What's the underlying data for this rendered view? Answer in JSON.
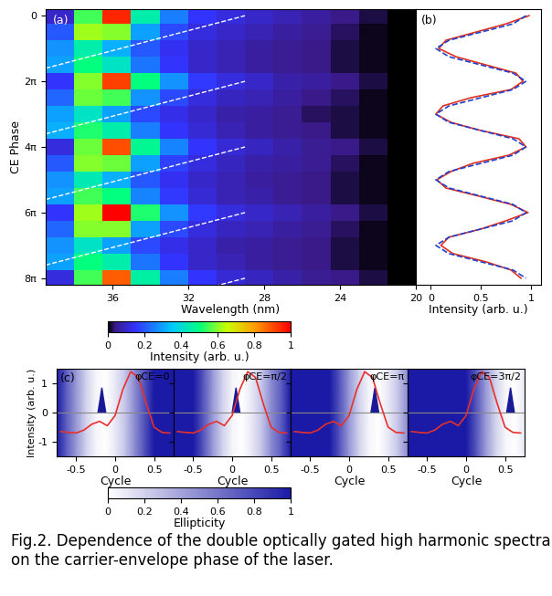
{
  "chart_data": [
    {
      "type": "heatmap",
      "panel_label": "(a)",
      "x_label": "Wavelength (nm)",
      "y_label": "CE Phase",
      "x_edges": [
        39.5,
        38,
        36.5,
        35,
        33.5,
        32,
        30.5,
        29,
        27.5,
        26,
        24.5,
        23,
        21.5,
        20
      ],
      "y_edges": [
        -0.25,
        0.25,
        0.75,
        1.25,
        1.75,
        2.25,
        2.75,
        3.25,
        3.75,
        4.25,
        4.75,
        5.25,
        5.75,
        6.25,
        6.75,
        7.25,
        7.75,
        8.25
      ],
      "cells": [
        [
          0.1,
          0.55,
          0.95,
          0.45,
          0.25,
          0.15,
          0.12,
          0.1,
          0.08,
          0.06,
          0.04,
          0.02,
          0.0
        ],
        [
          0.2,
          0.62,
          0.6,
          0.3,
          0.18,
          0.12,
          0.1,
          0.08,
          0.06,
          0.05,
          0.03,
          0.01,
          0.0
        ],
        [
          0.28,
          0.45,
          0.32,
          0.2,
          0.14,
          0.1,
          0.08,
          0.06,
          0.05,
          0.04,
          0.02,
          0.01,
          0.0
        ],
        [
          0.3,
          0.5,
          0.42,
          0.24,
          0.15,
          0.1,
          0.08,
          0.06,
          0.05,
          0.04,
          0.02,
          0.01,
          0.0
        ],
        [
          0.15,
          0.6,
          0.92,
          0.5,
          0.28,
          0.16,
          0.12,
          0.1,
          0.07,
          0.06,
          0.04,
          0.02,
          0.0
        ],
        [
          0.22,
          0.58,
          0.55,
          0.28,
          0.18,
          0.12,
          0.09,
          0.08,
          0.06,
          0.04,
          0.03,
          0.01,
          0.0
        ],
        [
          0.3,
          0.42,
          0.3,
          0.18,
          0.13,
          0.1,
          0.07,
          0.06,
          0.05,
          0.03,
          0.02,
          0.01,
          0.0
        ],
        [
          0.32,
          0.52,
          0.45,
          0.25,
          0.15,
          0.11,
          0.08,
          0.06,
          0.05,
          0.04,
          0.02,
          0.01,
          0.0
        ],
        [
          0.12,
          0.58,
          0.9,
          0.48,
          0.26,
          0.15,
          0.11,
          0.09,
          0.07,
          0.05,
          0.04,
          0.02,
          0.0
        ],
        [
          0.2,
          0.6,
          0.58,
          0.3,
          0.17,
          0.12,
          0.09,
          0.07,
          0.06,
          0.05,
          0.03,
          0.01,
          0.0
        ],
        [
          0.28,
          0.44,
          0.32,
          0.2,
          0.14,
          0.1,
          0.08,
          0.06,
          0.05,
          0.04,
          0.02,
          0.01,
          0.0
        ],
        [
          0.3,
          0.55,
          0.5,
          0.26,
          0.16,
          0.11,
          0.08,
          0.07,
          0.05,
          0.04,
          0.02,
          0.01,
          0.0
        ],
        [
          0.15,
          0.62,
          1.0,
          0.52,
          0.28,
          0.16,
          0.12,
          0.1,
          0.08,
          0.06,
          0.04,
          0.02,
          0.0
        ],
        [
          0.22,
          0.6,
          0.6,
          0.3,
          0.18,
          0.12,
          0.09,
          0.08,
          0.06,
          0.05,
          0.03,
          0.01,
          0.0
        ],
        [
          0.28,
          0.42,
          0.3,
          0.18,
          0.13,
          0.1,
          0.07,
          0.06,
          0.05,
          0.04,
          0.02,
          0.01,
          0.0
        ],
        [
          0.3,
          0.5,
          0.45,
          0.24,
          0.15,
          0.1,
          0.08,
          0.06,
          0.05,
          0.04,
          0.02,
          0.01,
          0.0
        ],
        [
          0.12,
          0.55,
          0.88,
          0.46,
          0.25,
          0.15,
          0.11,
          0.09,
          0.07,
          0.05,
          0.04,
          0.02,
          0.0
        ]
      ],
      "guide_lines": [
        {
          "x": [
            39.5,
            29
          ],
          "y": [
            1.6,
            0
          ],
          "color": "white",
          "line_style": "dashed"
        },
        {
          "x": [
            39.5,
            29
          ],
          "y": [
            3.6,
            2
          ],
          "color": "white",
          "line_style": "dashed"
        },
        {
          "x": [
            39.5,
            29
          ],
          "y": [
            5.6,
            4
          ],
          "color": "white",
          "line_style": "dashed"
        },
        {
          "x": [
            39.5,
            29
          ],
          "y": [
            7.6,
            6
          ],
          "color": "white",
          "line_style": "dashed"
        },
        {
          "x": [
            39.5,
            29
          ],
          "y": [
            9.6,
            8
          ],
          "color": "white",
          "line_style": "dashed"
        }
      ],
      "xlim": [
        39.5,
        20
      ],
      "xticks": [
        36,
        32,
        28,
        24,
        20
      ],
      "ylim": [
        8.2,
        -0.2
      ],
      "yticks": [
        0,
        {
          "value": 2,
          "label": "2π"
        },
        {
          "value": 4,
          "label": "4π"
        },
        {
          "value": 6,
          "label": "6π"
        },
        {
          "value": 8,
          "label": "8π"
        }
      ],
      "colorbar": {
        "label": "Intensity (arb. u.)",
        "range": [
          0,
          1
        ],
        "ticks": [
          0,
          0.2,
          0.4,
          0.6,
          0.8,
          1
        ]
      }
    },
    {
      "type": "line",
      "panel_label": "(b)",
      "x_label": "Intensity (arb. u.)",
      "tick_labels": "x",
      "phase": [
        0,
        0.25,
        0.5,
        0.75,
        1,
        1.25,
        1.5,
        1.75,
        2,
        2.25,
        2.5,
        2.75,
        3,
        3.25,
        3.5,
        3.75,
        4,
        4.25,
        4.5,
        4.75,
        5,
        5.25,
        5.5,
        5.75,
        6,
        6.25,
        6.5,
        6.75,
        7,
        7.25,
        7.5,
        7.75,
        8
      ],
      "series": [
        {
          "color": "#e03020",
          "line_style": "solid",
          "values": [
            0.98,
            0.75,
            0.45,
            0.15,
            0.08,
            0.25,
            0.55,
            0.85,
            0.92,
            0.8,
            0.4,
            0.12,
            0.05,
            0.2,
            0.5,
            0.88,
            0.95,
            0.78,
            0.42,
            0.2,
            0.06,
            0.15,
            0.48,
            0.8,
            0.97,
            0.75,
            0.5,
            0.18,
            0.1,
            0.22,
            0.55,
            0.8,
            0.9
          ]
        },
        {
          "color": "#2040d0",
          "line_style": "dashed",
          "values": [
            0.95,
            0.82,
            0.5,
            0.18,
            0.05,
            0.18,
            0.5,
            0.82,
            0.95,
            0.82,
            0.5,
            0.18,
            0.05,
            0.18,
            0.5,
            0.82,
            0.95,
            0.82,
            0.5,
            0.18,
            0.05,
            0.18,
            0.5,
            0.82,
            0.95,
            0.82,
            0.5,
            0.18,
            0.05,
            0.18,
            0.5,
            0.82,
            0.95
          ]
        }
      ],
      "xlim": [
        -0.15,
        1.1
      ],
      "xticks": [
        0,
        0.5,
        1
      ],
      "ylim": [
        8.2,
        -0.2
      ],
      "yticks": [
        0,
        {
          "value": 2,
          "label": "2π"
        },
        {
          "value": 4,
          "label": "4π"
        },
        {
          "value": 6,
          "label": "6π"
        },
        {
          "value": 8,
          "label": "8π"
        }
      ]
    },
    {
      "type": "line",
      "panel_label": "(c)",
      "annotation": "φCE=0",
      "x_label": "Cycle",
      "y_label": "Intensity (arb. u.)",
      "color": "#e8302a",
      "x": [
        -0.7,
        -0.6,
        -0.5,
        -0.4,
        -0.3,
        -0.2,
        -0.1,
        0,
        0.1,
        0.2,
        0.3,
        0.4,
        0.5,
        0.6,
        0.7
      ],
      "values": [
        -0.65,
        -0.68,
        -0.7,
        -0.6,
        -0.4,
        -0.3,
        -0.45,
        -0.1,
        0.8,
        1.4,
        1.2,
        0.3,
        -0.5,
        -0.68,
        -0.7
      ],
      "zero_line": 0,
      "burst": {
        "color": "#1a1a99",
        "x": [
          -0.22,
          -0.19,
          -0.17,
          -0.15,
          -0.12
        ],
        "values": [
          0,
          0.5,
          0.85,
          0.5,
          0
        ]
      },
      "background": {
        "x": [
          -0.75,
          -0.625,
          -0.5,
          -0.375,
          -0.25,
          -0.125,
          0,
          0.125,
          0.25,
          0.375,
          0.5,
          0.625,
          0.75
        ],
        "ellipticity": [
          1,
          0.7,
          0.45,
          0.2,
          0.05,
          0,
          0.1,
          0.25,
          0.5,
          0.75,
          1,
          1,
          1
        ]
      },
      "xlim": [
        -0.75,
        0.75
      ],
      "xticks": [
        -0.5,
        0,
        0.5
      ],
      "ylim": [
        -1.5,
        1.5
      ],
      "yticks": [
        -1,
        0,
        1
      ]
    },
    {
      "type": "line",
      "annotation": "φCE=π/2",
      "tick_labels": "x",
      "x_label": "Cycle",
      "color": "#e8302a",
      "x": [
        -0.7,
        -0.6,
        -0.5,
        -0.4,
        -0.3,
        -0.2,
        -0.1,
        0,
        0.1,
        0.2,
        0.3,
        0.4,
        0.5,
        0.6,
        0.7
      ],
      "values": [
        -0.65,
        -0.68,
        -0.7,
        -0.6,
        -0.4,
        -0.3,
        -0.45,
        -0.1,
        0.8,
        1.4,
        1.2,
        0.3,
        -0.5,
        -0.68,
        -0.7
      ],
      "zero_line": 0,
      "burst": {
        "color": "#1a1a99",
        "x": [
          0,
          0.03,
          0.05,
          0.07,
          0.1
        ],
        "values": [
          0,
          0.5,
          0.85,
          0.5,
          0
        ]
      },
      "background": {
        "x": [
          -0.75,
          -0.625,
          -0.5,
          -0.375,
          -0.25,
          -0.125,
          0,
          0.125,
          0.25,
          0.375,
          0.5,
          0.625,
          0.75
        ],
        "ellipticity": [
          1,
          1,
          1,
          0.75,
          0.45,
          0.2,
          0.05,
          0,
          0.1,
          0.25,
          0.5,
          0.7,
          1
        ]
      },
      "xlim": [
        -0.75,
        0.75
      ],
      "xticks": [
        -0.5,
        0,
        0.5
      ],
      "ylim": [
        -1.5,
        1.5
      ],
      "yticks": [
        -1,
        0,
        1
      ]
    },
    {
      "type": "line",
      "annotation": "φCE=π",
      "tick_labels": "x",
      "x_label": "Cycle",
      "color": "#e8302a",
      "x": [
        -0.7,
        -0.6,
        -0.5,
        -0.4,
        -0.3,
        -0.2,
        -0.1,
        0,
        0.1,
        0.2,
        0.3,
        0.4,
        0.5,
        0.6,
        0.7
      ],
      "values": [
        -0.65,
        -0.68,
        -0.7,
        -0.6,
        -0.4,
        -0.3,
        -0.45,
        -0.1,
        0.8,
        1.4,
        1.2,
        0.3,
        -0.5,
        -0.68,
        -0.7
      ],
      "zero_line": 0,
      "burst": {
        "color": "#1a1a99",
        "x": [
          0.28,
          0.31,
          0.33,
          0.35,
          0.38
        ],
        "values": [
          0,
          0.5,
          0.85,
          0.5,
          0
        ]
      },
      "background": {
        "x": [
          -0.75,
          -0.625,
          -0.5,
          -0.375,
          -0.25,
          -0.125,
          0,
          0.125,
          0.25,
          0.375,
          0.5,
          0.625,
          0.75
        ],
        "ellipticity": [
          1,
          1,
          1,
          1,
          1,
          0.75,
          0.45,
          0.2,
          0.05,
          0,
          0.1,
          0.25,
          0.5
        ]
      },
      "xlim": [
        -0.75,
        0.75
      ],
      "xticks": [
        -0.5,
        0,
        0.5
      ],
      "ylim": [
        -1.5,
        1.5
      ],
      "yticks": [
        -1,
        0,
        1
      ]
    },
    {
      "type": "line",
      "annotation": "φCE=3π/2",
      "tick_labels": "x",
      "x_label": "Cycle",
      "color": "#e8302a",
      "x": [
        -0.7,
        -0.6,
        -0.5,
        -0.4,
        -0.3,
        -0.2,
        -0.1,
        0,
        0.1,
        0.2,
        0.3,
        0.4,
        0.5,
        0.6,
        0.7
      ],
      "values": [
        -0.65,
        -0.68,
        -0.7,
        -0.6,
        -0.4,
        -0.3,
        -0.45,
        -0.1,
        0.8,
        1.4,
        1.2,
        0.3,
        -0.5,
        -0.68,
        -0.7
      ],
      "zero_line": 0,
      "burst": {
        "color": "#1a1a99",
        "x": [
          0.52,
          0.55,
          0.57,
          0.59,
          0.62
        ],
        "values": [
          0,
          0.5,
          0.85,
          0.5,
          0
        ]
      },
      "background": {
        "x": [
          -0.75,
          -0.625,
          -0.5,
          -0.375,
          -0.25,
          -0.125,
          0,
          0.125,
          0.25,
          0.375,
          0.5,
          0.625,
          0.75
        ],
        "ellipticity": [
          1,
          1,
          1,
          1,
          1,
          1,
          1,
          0.75,
          0.45,
          0.2,
          0.05,
          0,
          0.1
        ]
      },
      "xlim": [
        -0.75,
        0.75
      ],
      "xticks": [
        -0.5,
        0,
        0.5
      ],
      "ylim": [
        -1.5,
        1.5
      ],
      "yticks": [
        -1,
        0,
        1
      ]
    }
  ],
  "ellipticity_colorbar": {
    "label": "Ellipticity",
    "range": [
      0,
      1
    ],
    "ticks": [
      0,
      0.2,
      0.4,
      0.6,
      0.8,
      1
    ]
  },
  "caption": "Fig.2. Dependence of the double optically gated high harmonic spectra on the carrier-envelope phase of the laser."
}
